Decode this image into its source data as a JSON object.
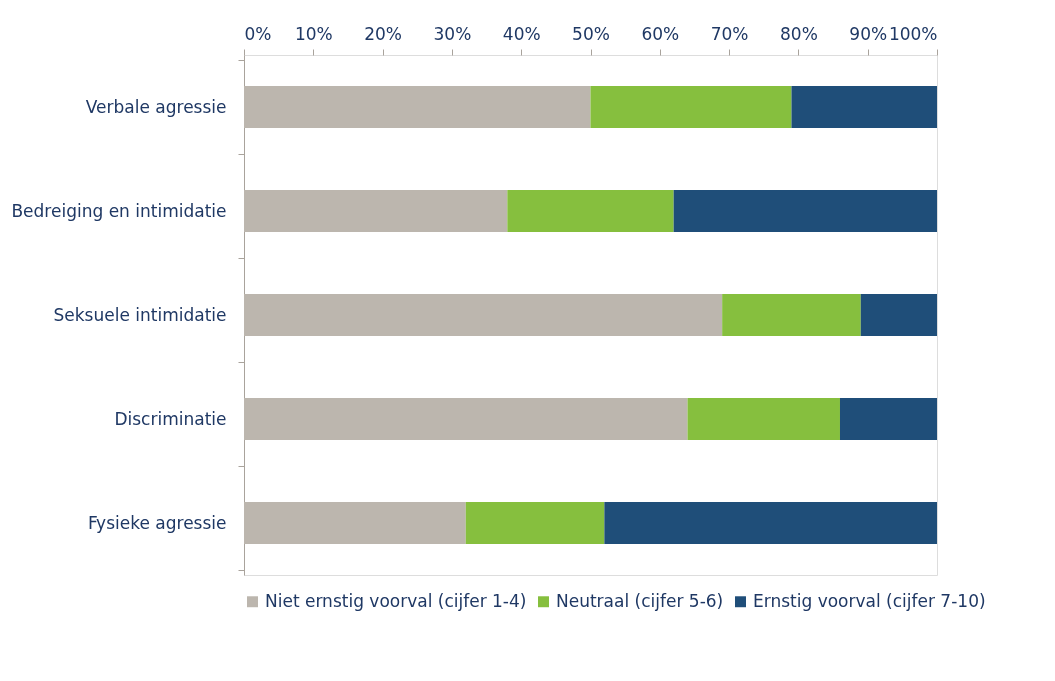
{
  "chart_data": {
    "type": "bar",
    "orientation": "horizontal",
    "stacked": true,
    "categories": [
      "Verbale agressie",
      "Bedreiging en intimidatie",
      "Seksuele intimidatie",
      "Discriminatie",
      "Fysieke agressie"
    ],
    "series": [
      {
        "name": "Niet ernstig voorval (cijfer 1-4)",
        "color": "#bcb6ae",
        "values": [
          50,
          38,
          69,
          64,
          32
        ]
      },
      {
        "name": "Neutraal (cijfer 5-6)",
        "color": "#86bf3e",
        "values": [
          29,
          24,
          20,
          22,
          20
        ]
      },
      {
        "name": "Ernstig voorval (cijfer 7-10)",
        "color": "#1f4e79",
        "values": [
          21,
          38,
          11,
          14,
          48
        ]
      }
    ],
    "xlim": [
      0,
      100
    ],
    "xticks": [
      {
        "value": 0,
        "label": "0%"
      },
      {
        "value": 10,
        "label": "10%"
      },
      {
        "value": 20,
        "label": "20%"
      },
      {
        "value": 30,
        "label": "30%"
      },
      {
        "value": 40,
        "label": "40%"
      },
      {
        "value": 50,
        "label": "50%"
      },
      {
        "value": 60,
        "label": "60%"
      },
      {
        "value": 70,
        "label": "70%"
      },
      {
        "value": 80,
        "label": "80%"
      },
      {
        "value": 90,
        "label": "90%"
      },
      {
        "value": 100,
        "label": "100%"
      }
    ],
    "grid": false,
    "legend": "bottom"
  }
}
